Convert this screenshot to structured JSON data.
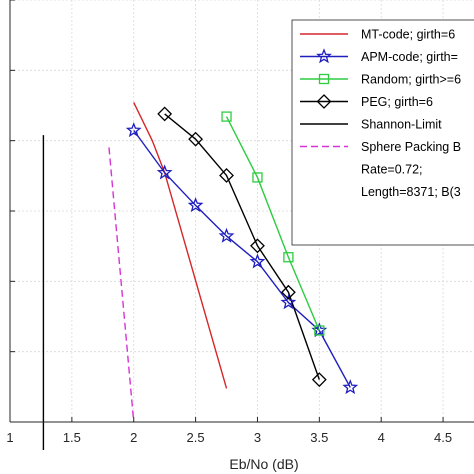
{
  "chart_data": {
    "type": "line",
    "title": "",
    "xlabel": "Eb/No (dB)",
    "ylabel": "",
    "xlim": [
      1,
      4.75
    ],
    "x_ticks": [
      1,
      1.5,
      2,
      2.5,
      3,
      3.5,
      4,
      4.5
    ],
    "x_tick_labels": [
      "1",
      "1.5",
      "2",
      "2.5",
      "3",
      "3.5",
      "4",
      "4.5"
    ],
    "y_scale": "log",
    "ylim_exp": [
      -9,
      -3
    ],
    "grid": true,
    "legend_position": "top-right",
    "series": [
      {
        "name": "MT-code; girth=6",
        "color": "#d62728",
        "marker": "none",
        "dash": "solid",
        "points": [
          [
            2.0,
            3.5e-05
          ],
          [
            2.15,
            1e-05
          ],
          [
            2.25,
            3.5e-06
          ],
          [
            2.75,
            3e-09
          ]
        ]
      },
      {
        "name": "APM-code; girth=",
        "color": "#1f1fbf",
        "marker": "star",
        "dash": "solid",
        "points": [
          [
            2.0,
            1.4e-05
          ],
          [
            2.25,
            3.5e-06
          ],
          [
            2.5,
            1.2e-06
          ],
          [
            2.75,
            4.4e-07
          ],
          [
            3.0,
            1.9e-07
          ],
          [
            3.25,
            5e-08
          ],
          [
            3.5,
            2e-08
          ],
          [
            3.75,
            3.1e-09
          ]
        ]
      },
      {
        "name": "Random; girth>=6",
        "color": "#2ecc40",
        "marker": "square",
        "dash": "solid",
        "points": [
          [
            2.75,
            2.2e-05
          ],
          [
            3.0,
            3e-06
          ],
          [
            3.25,
            2.2e-07
          ],
          [
            3.5,
            2e-08
          ]
        ]
      },
      {
        "name": "PEG; girth=6",
        "color": "#000000",
        "marker": "diamond",
        "dash": "solid",
        "points": [
          [
            2.25,
            2.4e-05
          ],
          [
            2.5,
            1.05e-05
          ],
          [
            2.75,
            3.2e-06
          ],
          [
            3.0,
            3.2e-07
          ],
          [
            3.25,
            7e-08
          ],
          [
            3.5,
            4e-09
          ]
        ]
      },
      {
        "name": "Shannon-Limit",
        "color": "#000000",
        "marker": "none",
        "dash": "solid",
        "points": [
          [
            1.27,
            1.2e-05
          ],
          [
            1.27,
            4e-10
          ]
        ]
      },
      {
        "name": "Sphere Packing B",
        "color": "#d633d6",
        "marker": "none",
        "dash": "dashed",
        "points": [
          [
            1.8,
            8e-06
          ],
          [
            2.0,
            1e-09
          ]
        ]
      }
    ],
    "annotations": [
      "Rate=0.72;",
      "Length=8371; B(3"
    ]
  }
}
